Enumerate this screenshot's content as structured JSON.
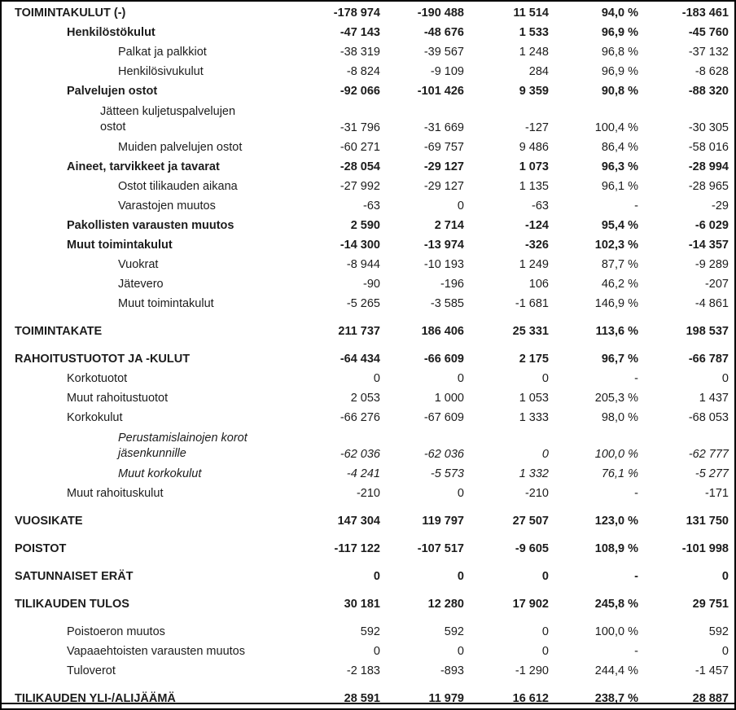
{
  "colors": {
    "background": "#ffffff",
    "text": "#1c1c1c",
    "border": "#000000"
  },
  "statement": {
    "rows": [
      {
        "label": "TOIMINTAKULUT (-)",
        "style": "major",
        "level": 0,
        "gap": false,
        "wrap": false,
        "values": [
          "-178 974",
          "-190 488",
          "11 514",
          "94,0 %",
          "-183 461"
        ]
      },
      {
        "label": "Henkilöstökulut",
        "style": "group",
        "level": 1,
        "gap": false,
        "wrap": false,
        "values": [
          "-47 143",
          "-48 676",
          "1 533",
          "96,9 %",
          "-45 760"
        ]
      },
      {
        "label": "Palkat ja palkkiot",
        "style": "plain",
        "level": 2,
        "gap": false,
        "wrap": false,
        "values": [
          "-38 319",
          "-39 567",
          "1 248",
          "96,8 %",
          "-37 132"
        ]
      },
      {
        "label": "Henkilösivukulut",
        "style": "plain",
        "level": 2,
        "gap": false,
        "wrap": false,
        "values": [
          "-8 824",
          "-9 109",
          "284",
          "96,9 %",
          "-8 628"
        ]
      },
      {
        "label": "Palvelujen ostot",
        "style": "group",
        "level": 1,
        "gap": false,
        "wrap": false,
        "values": [
          "-92 066",
          "-101 426",
          "9 359",
          "90,8 %",
          "-88 320"
        ]
      },
      {
        "label": "Jätteen kuljetuspalvelujen ostot",
        "style": "plain",
        "level": 2,
        "gap": false,
        "wrap": true,
        "narrow": true,
        "values": [
          "-31 796",
          "-31 669",
          "-127",
          "100,4 %",
          "-30 305"
        ]
      },
      {
        "label": "Muiden palvelujen ostot",
        "style": "plain",
        "level": 2,
        "gap": false,
        "wrap": false,
        "values": [
          "-60 271",
          "-69 757",
          "9 486",
          "86,4 %",
          "-58 016"
        ]
      },
      {
        "label": "Aineet, tarvikkeet ja tavarat",
        "style": "group",
        "level": 1,
        "gap": false,
        "wrap": false,
        "values": [
          "-28 054",
          "-29 127",
          "1 073",
          "96,3 %",
          "-28 994"
        ]
      },
      {
        "label": "Ostot tilikauden aikana",
        "style": "plain",
        "level": 2,
        "gap": false,
        "wrap": false,
        "values": [
          "-27 992",
          "-29 127",
          "1 135",
          "96,1 %",
          "-28 965"
        ]
      },
      {
        "label": "Varastojen muutos",
        "style": "plain",
        "level": 2,
        "gap": false,
        "wrap": false,
        "values": [
          "-63",
          "0",
          "-63",
          "-",
          "-29"
        ]
      },
      {
        "label": "Pakollisten varausten muutos",
        "style": "group",
        "level": 1,
        "gap": false,
        "wrap": false,
        "values": [
          "2 590",
          "2 714",
          "-124",
          "95,4 %",
          "-6 029"
        ]
      },
      {
        "label": "Muut toimintakulut",
        "style": "group",
        "level": 1,
        "gap": false,
        "wrap": false,
        "values": [
          "-14 300",
          "-13 974",
          "-326",
          "102,3 %",
          "-14 357"
        ]
      },
      {
        "label": "Vuokrat",
        "style": "plain",
        "level": 2,
        "gap": false,
        "wrap": false,
        "values": [
          "-8 944",
          "-10 193",
          "1 249",
          "87,7 %",
          "-9 289"
        ]
      },
      {
        "label": "Jätevero",
        "style": "plain",
        "level": 2,
        "gap": false,
        "wrap": false,
        "values": [
          "-90",
          "-196",
          "106",
          "46,2 %",
          "-207"
        ]
      },
      {
        "label": "Muut toimintakulut",
        "style": "plain",
        "level": 2,
        "gap": false,
        "wrap": false,
        "values": [
          "-5 265",
          "-3 585",
          "-1 681",
          "146,9 %",
          "-4 861"
        ]
      },
      {
        "label": "TOIMINTAKATE",
        "style": "major",
        "level": 0,
        "gap": true,
        "wrap": false,
        "values": [
          "211 737",
          "186 406",
          "25 331",
          "113,6 %",
          "198 537"
        ]
      },
      {
        "label": "RAHOITUSTUOTOT JA -KULUT",
        "style": "major",
        "level": 0,
        "gap": true,
        "wrap": false,
        "values": [
          "-64 434",
          "-66 609",
          "2 175",
          "96,7 %",
          "-66 787"
        ]
      },
      {
        "label": "Korkotuotot",
        "style": "plain",
        "level": 1,
        "gap": false,
        "wrap": false,
        "values": [
          "0",
          "0",
          "0",
          "-",
          "0"
        ]
      },
      {
        "label": "Muut rahoitustuotot",
        "style": "plain",
        "level": 1,
        "gap": false,
        "wrap": false,
        "values": [
          "2 053",
          "1 000",
          "1 053",
          "205,3 %",
          "1 437"
        ]
      },
      {
        "label": "Korkokulut",
        "style": "plain",
        "level": 1,
        "gap": false,
        "wrap": false,
        "values": [
          "-66 276",
          "-67 609",
          "1 333",
          "98,0 %",
          "-68 053"
        ]
      },
      {
        "label": "Perustamislainojen korot jäsenkunnille",
        "style": "italic",
        "level": 2,
        "gap": false,
        "wrap": true,
        "values": [
          "-62 036",
          "-62 036",
          "0",
          "100,0 %",
          "-62 777"
        ]
      },
      {
        "label": "Muut korkokulut",
        "style": "italic",
        "level": 2,
        "gap": false,
        "wrap": false,
        "values": [
          "-4 241",
          "-5 573",
          "1 332",
          "76,1 %",
          "-5 277"
        ]
      },
      {
        "label": "Muut rahoituskulut",
        "style": "plain",
        "level": 1,
        "gap": false,
        "wrap": false,
        "values": [
          "-210",
          "0",
          "-210",
          "-",
          "-171"
        ]
      },
      {
        "label": "VUOSIKATE",
        "style": "major",
        "level": 0,
        "gap": true,
        "wrap": false,
        "values": [
          "147 304",
          "119 797",
          "27 507",
          "123,0 %",
          "131 750"
        ]
      },
      {
        "label": "POISTOT",
        "style": "major",
        "level": 0,
        "gap": true,
        "wrap": false,
        "values": [
          "-117 122",
          "-107 517",
          "-9 605",
          "108,9 %",
          "-101 998"
        ]
      },
      {
        "label": "SATUNNAISET ERÄT",
        "style": "major",
        "level": 0,
        "gap": true,
        "wrap": false,
        "values": [
          "0",
          "0",
          "0",
          "-",
          "0"
        ]
      },
      {
        "label": "TILIKAUDEN TULOS",
        "style": "major",
        "level": 0,
        "gap": true,
        "wrap": false,
        "values": [
          "30 181",
          "12 280",
          "17 902",
          "245,8 %",
          "29 751"
        ]
      },
      {
        "label": "Poistoeron muutos",
        "style": "plain",
        "level": 1,
        "gap": true,
        "wrap": false,
        "values": [
          "592",
          "592",
          "0",
          "100,0 %",
          "592"
        ]
      },
      {
        "label": "Vapaaehtoisten varausten muutos",
        "style": "plain",
        "level": 1,
        "gap": false,
        "wrap": false,
        "values": [
          "0",
          "0",
          "0",
          "-",
          "0"
        ]
      },
      {
        "label": "Tuloverot",
        "style": "plain",
        "level": 1,
        "gap": false,
        "wrap": false,
        "values": [
          "-2 183",
          "-893",
          "-1 290",
          "244,4 %",
          "-1 457"
        ]
      },
      {
        "label": "TILIKAUDEN YLI-/ALIJÄÄMÄ",
        "style": "major",
        "level": 0,
        "gap": true,
        "wrap": false,
        "values": [
          "28 591",
          "11 979",
          "16 612",
          "238,7 %",
          "28 887"
        ]
      }
    ]
  }
}
